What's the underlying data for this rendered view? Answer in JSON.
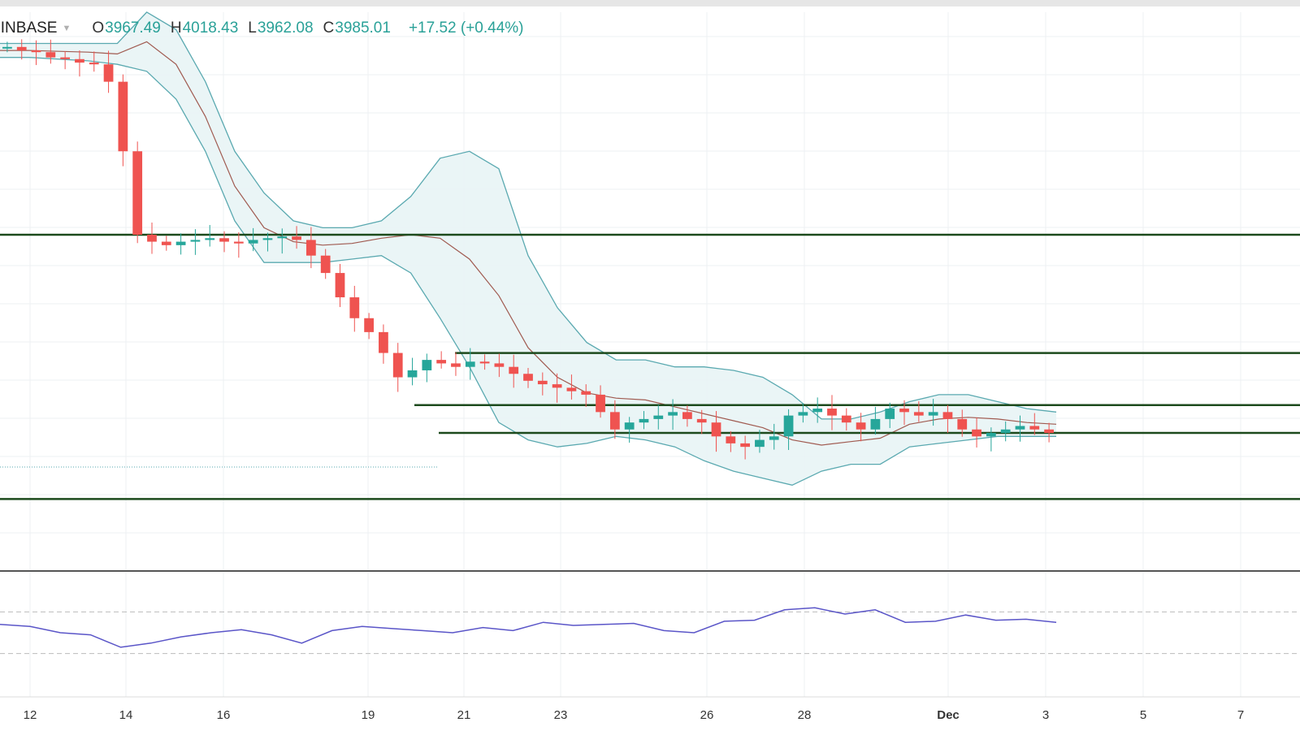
{
  "header": {
    "symbol": "OINBASE",
    "open_label": "O",
    "open": "3967.49",
    "high_label": "H",
    "high": "4018.43",
    "low_label": "L",
    "low": "3962.08",
    "close_label": "C",
    "close": "3985.01",
    "change": "+17.52 (+0.44%)"
  },
  "colors": {
    "up": "#26a69a",
    "down": "#ef5350",
    "band_line": "#5aa9b0",
    "band_fill": "#e8f4f5",
    "ma": "#a05a50",
    "level": "#1c4a1c",
    "rsi": "#5a55c8"
  },
  "chart_data": {
    "type": "candlestick",
    "x_ticks": [
      "12",
      "14",
      "16",
      "19",
      "21",
      "23",
      "26",
      "28",
      "Dec",
      "3",
      "5",
      "7"
    ],
    "y_min": 2800,
    "y_max": 4400,
    "close_series": [
      4300,
      4290,
      4285,
      4270,
      4265,
      4255,
      4250,
      4200,
      4000,
      3760,
      3740,
      3730,
      3740,
      3745,
      3750,
      3740,
      3735,
      3745,
      3750,
      3755,
      3745,
      3700,
      3650,
      3580,
      3520,
      3480,
      3420,
      3350,
      3370,
      3400,
      3390,
      3380,
      3395,
      3390,
      3380,
      3360,
      3340,
      3330,
      3320,
      3310,
      3300,
      3250,
      3200,
      3220,
      3230,
      3240,
      3250,
      3230,
      3220,
      3180,
      3160,
      3150,
      3170,
      3180,
      3240,
      3250,
      3260,
      3240,
      3220,
      3200,
      3230,
      3260,
      3250,
      3240,
      3250,
      3230,
      3200,
      3180,
      3190,
      3200,
      3210,
      3200,
      3190
    ],
    "bollinger": {
      "upper": [
        4310,
        4310,
        4310,
        4310,
        4310,
        4400,
        4350,
        4200,
        4000,
        3880,
        3800,
        3780,
        3780,
        3800,
        3870,
        3980,
        4000,
        3950,
        3700,
        3550,
        3450,
        3400,
        3400,
        3380,
        3380,
        3370,
        3350,
        3300,
        3230,
        3230,
        3250,
        3280,
        3300,
        3300,
        3280,
        3260,
        3250
      ],
      "lower": [
        4270,
        4270,
        4265,
        4260,
        4250,
        4230,
        4150,
        4000,
        3800,
        3680,
        3680,
        3680,
        3690,
        3700,
        3650,
        3520,
        3380,
        3220,
        3170,
        3150,
        3160,
        3180,
        3170,
        3150,
        3110,
        3080,
        3060,
        3040,
        3080,
        3100,
        3100,
        3150,
        3160,
        3170,
        3180,
        3180,
        3180
      ]
    },
    "levels": [
      3760,
      3420,
      3270,
      3190,
      3000
    ],
    "rsi": [
      58,
      56,
      50,
      48,
      36,
      40,
      46,
      50,
      53,
      48,
      40,
      52,
      56,
      54,
      52,
      50,
      55,
      52,
      60,
      57,
      58,
      59,
      52,
      50,
      61,
      62,
      72,
      74,
      68,
      72,
      60,
      61,
      67,
      62,
      63,
      60
    ]
  }
}
